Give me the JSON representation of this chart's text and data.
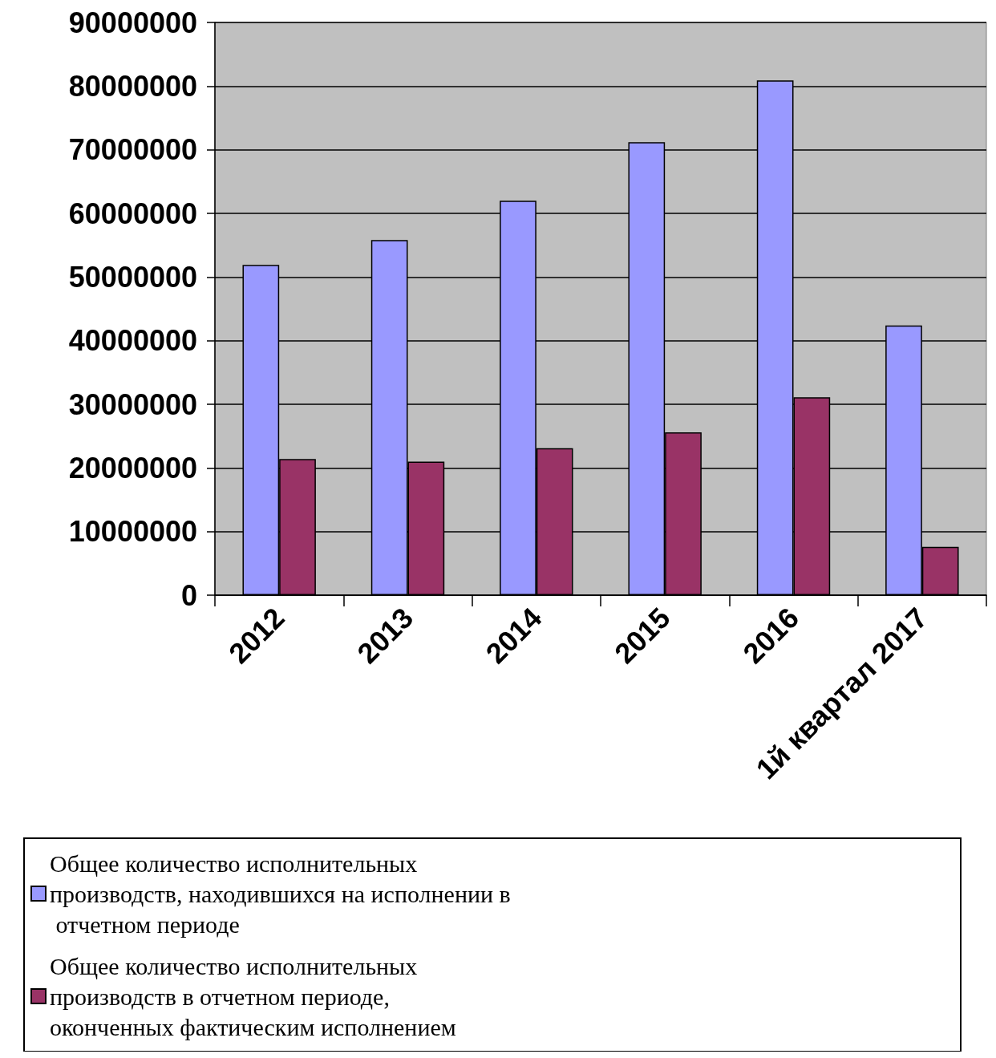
{
  "chart_data": {
    "type": "bar",
    "categories": [
      "2012",
      "2013",
      "2014",
      "2015",
      "2016",
      "1й квартал 2017"
    ],
    "series": [
      {
        "name": "Общее количество исполнительных производств, находившихся на исполнении в отчетном периоде",
        "color": "#9999ff",
        "values": [
          51900000,
          55800000,
          62000000,
          71200000,
          80900000,
          42400000
        ]
      },
      {
        "name": "Общее количество исполнительных  производств в отчетном периоде, оконченных фактическим исполнением",
        "color": "#993366",
        "values": [
          21400000,
          21000000,
          23100000,
          25600000,
          31100000,
          7600000
        ]
      }
    ],
    "ylim": [
      0,
      90000000
    ],
    "yticks": [
      0,
      10000000,
      20000000,
      30000000,
      40000000,
      50000000,
      60000000,
      70000000,
      80000000,
      90000000
    ],
    "grid": "y",
    "legend": "bottom"
  }
}
